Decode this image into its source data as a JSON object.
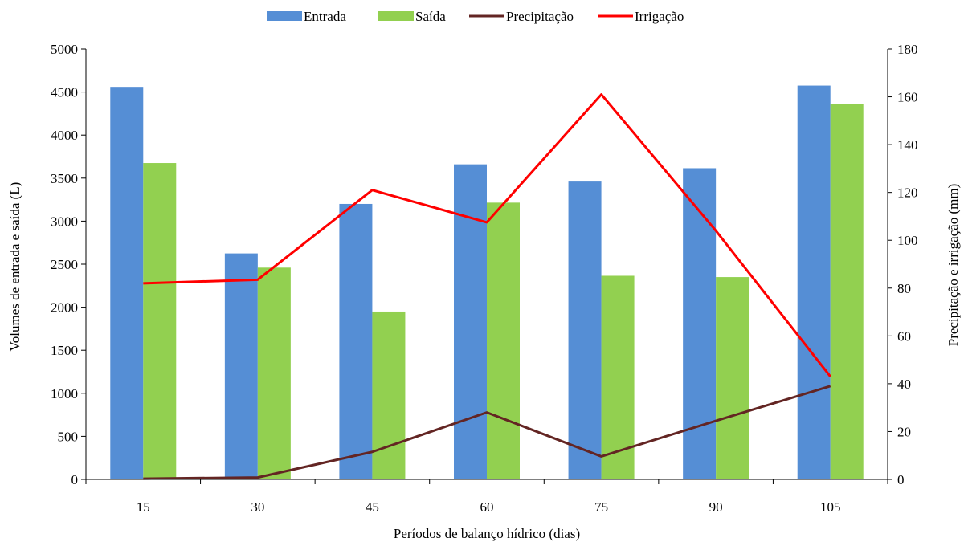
{
  "chart_data": {
    "type": "bar",
    "categories": [
      "15",
      "30",
      "45",
      "60",
      "75",
      "90",
      "105"
    ],
    "xlabel": "Períodos de balanço  hídrico (dias)",
    "ylabel": "Volumes de entrada e saída (L)",
    "y2label": "Precipitação e irrigação (mm)",
    "ylim": [
      0,
      5000
    ],
    "y2lim": [
      0,
      180
    ],
    "yticks": [
      0,
      500,
      1000,
      1500,
      2000,
      2500,
      3000,
      3500,
      4000,
      4500,
      5000
    ],
    "y2ticks": [
      0,
      20,
      40,
      60,
      80,
      100,
      120,
      140,
      160,
      180
    ],
    "grid": false,
    "legend_position": "top",
    "series": [
      {
        "name": "Entrada",
        "kind": "bar",
        "axis": "left",
        "color": "#558ED5",
        "values": [
          4560,
          2625,
          3200,
          3660,
          3460,
          3615,
          4575
        ]
      },
      {
        "name": "Saída",
        "kind": "bar",
        "axis": "left",
        "color": "#92D050",
        "values": [
          3675,
          2460,
          1950,
          3215,
          2365,
          2350,
          4360
        ]
      },
      {
        "name": "Precipitação",
        "kind": "line",
        "axis": "right",
        "color": "#632523",
        "values": [
          0.3,
          0.8,
          11.5,
          28,
          9.6,
          24.5,
          39
        ]
      },
      {
        "name": "Irrigação",
        "kind": "line",
        "axis": "right",
        "color": "#FF0000",
        "values": [
          82,
          83.5,
          121,
          107.5,
          161,
          104,
          43
        ]
      }
    ]
  }
}
